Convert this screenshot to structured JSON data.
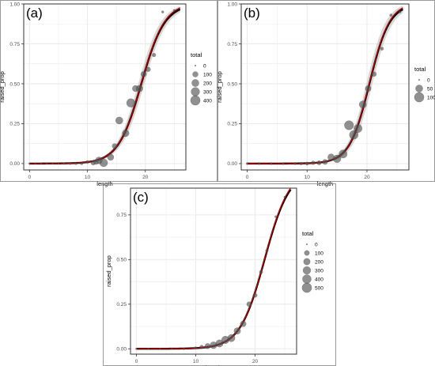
{
  "colors": {
    "background": "#ffffff",
    "panel_border": "#333333",
    "grid": "#ebebeb",
    "point_fill": "#555555",
    "fit_line": "#000000",
    "model_line": "#c00000",
    "model_ribbon": "#f2a0a0",
    "fit_ribbon": "#c8c8c8",
    "axis_text": "#4d4d4d"
  },
  "chart_data": [
    {
      "type": "scatter",
      "panel_label": "(a)",
      "xlabel": "length",
      "ylabel": "raised_prop",
      "xlim": [
        -1,
        27
      ],
      "ylim": [
        -0.04,
        1.0
      ],
      "xticks": [
        0,
        10,
        20
      ],
      "yticks": [
        0.0,
        0.25,
        0.5,
        0.75,
        1.0
      ],
      "ytick_labels": [
        "0.00",
        "0.25",
        "0.50",
        "0.75",
        "1.00"
      ],
      "legend": {
        "title": "total",
        "placement": "right",
        "entries": [
          {
            "label": "0",
            "size": 0
          },
          {
            "label": "100",
            "size": 100
          },
          {
            "label": "200",
            "size": 200
          },
          {
            "label": "300",
            "size": 300
          },
          {
            "label": "400",
            "size": 400
          }
        ]
      },
      "size_max": 400,
      "x_range": [
        0,
        26
      ],
      "curve": {
        "midpoint": 19.3,
        "slope": 0.5
      },
      "fit_ribbon_width": 0.06,
      "model_ribbon_width": 0.025,
      "points": [
        {
          "x": 0,
          "y": 0,
          "size": 1
        },
        {
          "x": 1,
          "y": 0,
          "size": 1
        },
        {
          "x": 2,
          "y": 0,
          "size": 1
        },
        {
          "x": 3,
          "y": 0,
          "size": 1
        },
        {
          "x": 4,
          "y": 0,
          "size": 1
        },
        {
          "x": 5,
          "y": 0,
          "size": 1
        },
        {
          "x": 6,
          "y": 0,
          "size": 2
        },
        {
          "x": 7,
          "y": 0,
          "size": 3
        },
        {
          "x": 8,
          "y": 0,
          "size": 5
        },
        {
          "x": 9,
          "y": 0,
          "size": 8
        },
        {
          "x": 10,
          "y": 0.01,
          "size": 15
        },
        {
          "x": 11,
          "y": 0.005,
          "size": 60
        },
        {
          "x": 11.5,
          "y": 0.01,
          "size": 80
        },
        {
          "x": 12,
          "y": 0.02,
          "size": 180
        },
        {
          "x": 12.8,
          "y": 0.005,
          "size": 260
        },
        {
          "x": 14,
          "y": 0.04,
          "size": 150
        },
        {
          "x": 14.7,
          "y": 0.11,
          "size": 80
        },
        {
          "x": 15.5,
          "y": 0.27,
          "size": 200
        },
        {
          "x": 16.6,
          "y": 0.19,
          "size": 180
        },
        {
          "x": 17.5,
          "y": 0.38,
          "size": 300
        },
        {
          "x": 18.3,
          "y": 0.47,
          "size": 140
        },
        {
          "x": 19,
          "y": 0.47,
          "size": 160
        },
        {
          "x": 19.7,
          "y": 0.56,
          "size": 100
        },
        {
          "x": 20.5,
          "y": 0.59,
          "size": 60
        },
        {
          "x": 21.5,
          "y": 0.68,
          "size": 30
        },
        {
          "x": 23,
          "y": 0.95,
          "size": 5
        },
        {
          "x": 25,
          "y": 0.96,
          "size": 2
        }
      ]
    },
    {
      "type": "scatter",
      "panel_label": "(b)",
      "xlabel": "length",
      "ylabel": "raised_prop",
      "xlim": [
        -1,
        27
      ],
      "ylim": [
        -0.04,
        1.0
      ],
      "xticks": [
        0,
        10,
        20
      ],
      "yticks": [
        0.0,
        0.25,
        0.5,
        0.75,
        1.0
      ],
      "ytick_labels": [
        "0.00",
        "0.25",
        "0.50",
        "0.75",
        "1.00"
      ],
      "legend": {
        "title": "total",
        "placement": "right",
        "entries": [
          {
            "label": "0",
            "size": 0
          },
          {
            "label": "50",
            "size": 50
          },
          {
            "label": "100",
            "size": 100
          }
        ]
      },
      "size_max": 100,
      "x_range": [
        0,
        26
      ],
      "curve": {
        "midpoint": 20.4,
        "slope": 0.6
      },
      "fit_ribbon_width": 0.07,
      "model_ribbon_width": 0.02,
      "points": [
        {
          "x": 0,
          "y": 0,
          "size": 1
        },
        {
          "x": 2,
          "y": 0,
          "size": 1
        },
        {
          "x": 4,
          "y": 0,
          "size": 1
        },
        {
          "x": 6,
          "y": 0,
          "size": 1
        },
        {
          "x": 8,
          "y": 0,
          "size": 2
        },
        {
          "x": 9,
          "y": 0,
          "size": 3
        },
        {
          "x": 10,
          "y": 0,
          "size": 5
        },
        {
          "x": 11,
          "y": 0.005,
          "size": 8
        },
        {
          "x": 12,
          "y": 0.005,
          "size": 12
        },
        {
          "x": 13,
          "y": 0.01,
          "size": 20
        },
        {
          "x": 14,
          "y": 0.04,
          "size": 40
        },
        {
          "x": 15,
          "y": 0.03,
          "size": 60
        },
        {
          "x": 16,
          "y": 0.06,
          "size": 70
        },
        {
          "x": 17,
          "y": 0.24,
          "size": 90
        },
        {
          "x": 17.8,
          "y": 0.18,
          "size": 80
        },
        {
          "x": 18.5,
          "y": 0.22,
          "size": 70
        },
        {
          "x": 19.3,
          "y": 0.37,
          "size": 50
        },
        {
          "x": 20.2,
          "y": 0.47,
          "size": 30
        },
        {
          "x": 21.2,
          "y": 0.56,
          "size": 15
        },
        {
          "x": 22.5,
          "y": 0.72,
          "size": 5
        },
        {
          "x": 24,
          "y": 0.93,
          "size": 2
        },
        {
          "x": 25.5,
          "y": 0.95,
          "size": 1
        }
      ]
    },
    {
      "type": "scatter",
      "panel_label": "(c)",
      "xlabel": "length",
      "ylabel": "raised_prop",
      "xlim": [
        -1,
        27
      ],
      "ylim": [
        -0.03,
        0.9
      ],
      "xticks": [
        0,
        10,
        20
      ],
      "yticks": [
        0.0,
        0.25,
        0.5,
        0.75
      ],
      "ytick_labels": [
        "0.00",
        "0.25",
        "0.50",
        "0.75"
      ],
      "legend": {
        "title": "total",
        "placement": "right",
        "entries": [
          {
            "label": "0",
            "size": 0
          },
          {
            "label": "100",
            "size": 100
          },
          {
            "label": "200",
            "size": 200
          },
          {
            "label": "300",
            "size": 300
          },
          {
            "label": "400",
            "size": 400
          },
          {
            "label": "500",
            "size": 500
          }
        ]
      },
      "size_max": 500,
      "x_range": [
        0,
        26
      ],
      "curve": {
        "midpoint": 21.6,
        "slope": 0.48
      },
      "fit_ribbon_width": 0.0,
      "model_ribbon_width": 0.015,
      "points": [
        {
          "x": 0,
          "y": 0,
          "size": 1
        },
        {
          "x": 2,
          "y": 0,
          "size": 1
        },
        {
          "x": 4,
          "y": 0,
          "size": 1
        },
        {
          "x": 6,
          "y": 0,
          "size": 1
        },
        {
          "x": 8,
          "y": 0,
          "size": 2
        },
        {
          "x": 10,
          "y": 0.005,
          "size": 10
        },
        {
          "x": 11,
          "y": 0.01,
          "size": 40
        },
        {
          "x": 12,
          "y": 0.015,
          "size": 120
        },
        {
          "x": 13,
          "y": 0.02,
          "size": 220
        },
        {
          "x": 14,
          "y": 0.03,
          "size": 260
        },
        {
          "x": 15,
          "y": 0.05,
          "size": 280
        },
        {
          "x": 16,
          "y": 0.06,
          "size": 260
        },
        {
          "x": 17,
          "y": 0.1,
          "size": 200
        },
        {
          "x": 18,
          "y": 0.14,
          "size": 150
        },
        {
          "x": 19,
          "y": 0.25,
          "size": 90
        },
        {
          "x": 20,
          "y": 0.3,
          "size": 60
        },
        {
          "x": 21,
          "y": 0.43,
          "size": 30
        },
        {
          "x": 22,
          "y": 0.55,
          "size": 15
        },
        {
          "x": 23.5,
          "y": 0.74,
          "size": 5
        },
        {
          "x": 25,
          "y": 0.85,
          "size": 2
        }
      ]
    }
  ]
}
